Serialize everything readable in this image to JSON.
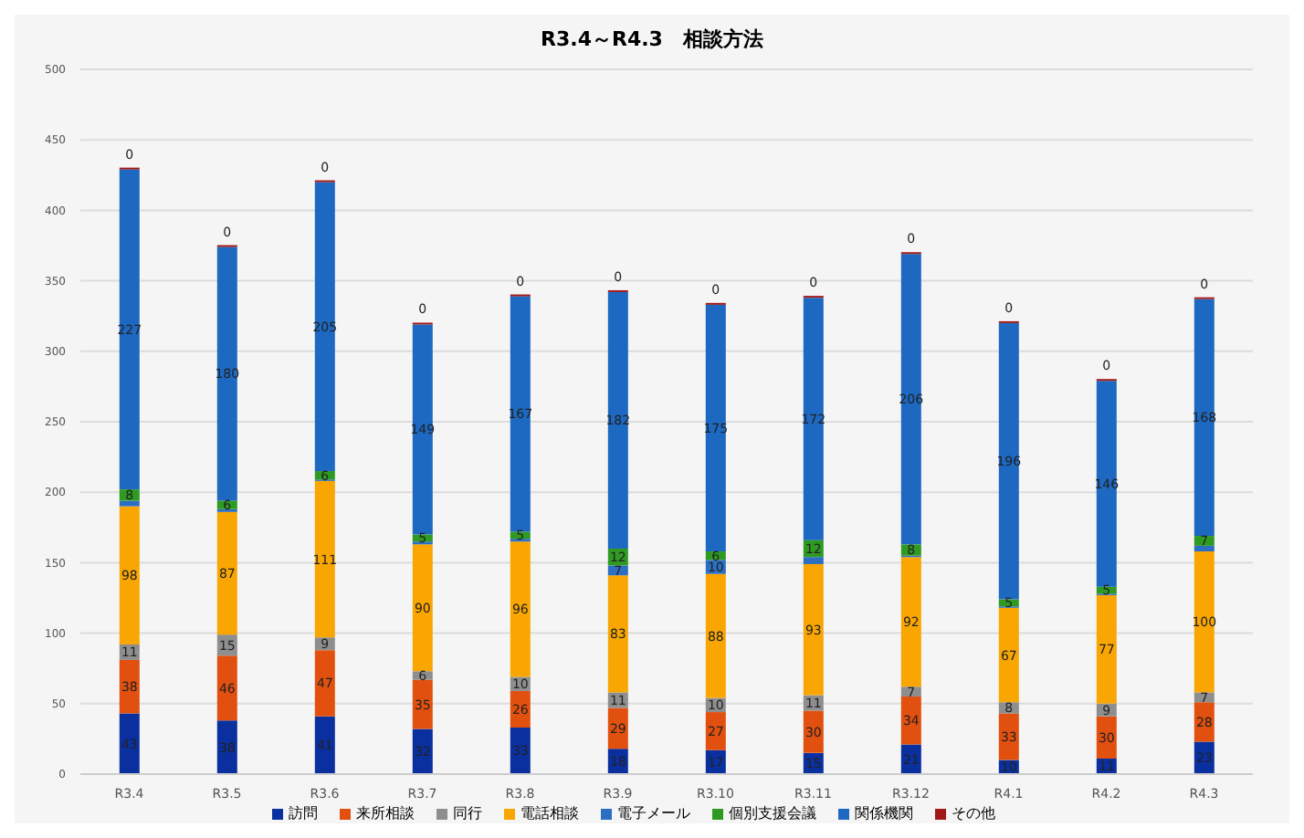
{
  "chart_data": {
    "type": "bar",
    "title": "R3.4～R4.3　相談方法",
    "stacked": true,
    "grid": "y",
    "legend": "bottom",
    "categories": [
      "R3.4",
      "R3.5",
      "R3.6",
      "R3.7",
      "R3.8",
      "R3.9",
      "R3.10",
      "R3.11",
      "R3.12",
      "R4.1",
      "R4.2",
      "R4.3"
    ],
    "ylim": [
      0,
      500
    ],
    "yticks": [
      0,
      50,
      100,
      150,
      200,
      250,
      300,
      350,
      400,
      450,
      500
    ],
    "series": [
      {
        "name": "訪問",
        "color": "#0a30a0",
        "values": [
          43,
          38,
          41,
          32,
          33,
          18,
          17,
          15,
          21,
          10,
          11,
          23
        ],
        "value_labels": [
          "43",
          "38",
          "41",
          "32",
          "33",
          "18",
          "17",
          "15",
          "21",
          "10",
          "11",
          "23"
        ]
      },
      {
        "name": "来所相談",
        "color": "#e2500f",
        "values": [
          38,
          46,
          47,
          35,
          26,
          29,
          27,
          30,
          34,
          33,
          30,
          28
        ],
        "value_labels": [
          "38",
          "46",
          "47",
          "35",
          "26",
          "29",
          "27",
          "30",
          "34",
          "33",
          "30",
          "28"
        ]
      },
      {
        "name": "同行",
        "color": "#8e8e8e",
        "values": [
          11,
          15,
          9,
          6,
          10,
          11,
          10,
          11,
          7,
          8,
          9,
          7
        ],
        "value_labels": [
          "11",
          "15",
          "9",
          "6",
          "10",
          "11",
          "10",
          "11",
          "7",
          "8",
          "9",
          "7"
        ]
      },
      {
        "name": "電話相談",
        "color": "#f9a602",
        "values": [
          98,
          87,
          111,
          90,
          96,
          83,
          88,
          93,
          92,
          67,
          77,
          100
        ],
        "value_labels": [
          "98",
          "87",
          "111",
          "90",
          "96",
          "83",
          "88",
          "93",
          "92",
          "67",
          "77",
          "100"
        ]
      },
      {
        "name": "電子メール",
        "color": "#2c6fc2",
        "values": [
          4,
          2,
          1,
          2,
          2,
          7,
          10,
          5,
          1,
          1,
          1,
          4
        ],
        "value_labels": [
          null,
          null,
          null,
          null,
          null,
          "7",
          "10",
          null,
          null,
          null,
          null,
          null
        ]
      },
      {
        "name": "個別支援会議",
        "color": "#2f9a22",
        "values": [
          8,
          6,
          6,
          5,
          5,
          12,
          6,
          12,
          8,
          5,
          5,
          7
        ],
        "value_labels": [
          "8",
          "6",
          "6",
          "5",
          "5",
          "12",
          "6",
          "12",
          "8",
          "5",
          "5",
          "7"
        ]
      },
      {
        "name": "関係機関",
        "color": "#1d68c0",
        "values": [
          227,
          180,
          205,
          149,
          167,
          182,
          175,
          172,
          206,
          196,
          146,
          168
        ],
        "value_labels": [
          "227",
          "180",
          "205",
          "149",
          "167",
          "182",
          "175",
          "172",
          "206",
          "196",
          "146",
          "168"
        ]
      },
      {
        "name": "その他",
        "color": "#a01818",
        "values": [
          0,
          0,
          0,
          0,
          0,
          0,
          0,
          0,
          0,
          0,
          0,
          0
        ],
        "value_labels": [
          "0",
          "0",
          "0",
          "0",
          "0",
          "0",
          "0",
          "0",
          "0",
          "0",
          "0",
          "0"
        ]
      }
    ]
  }
}
